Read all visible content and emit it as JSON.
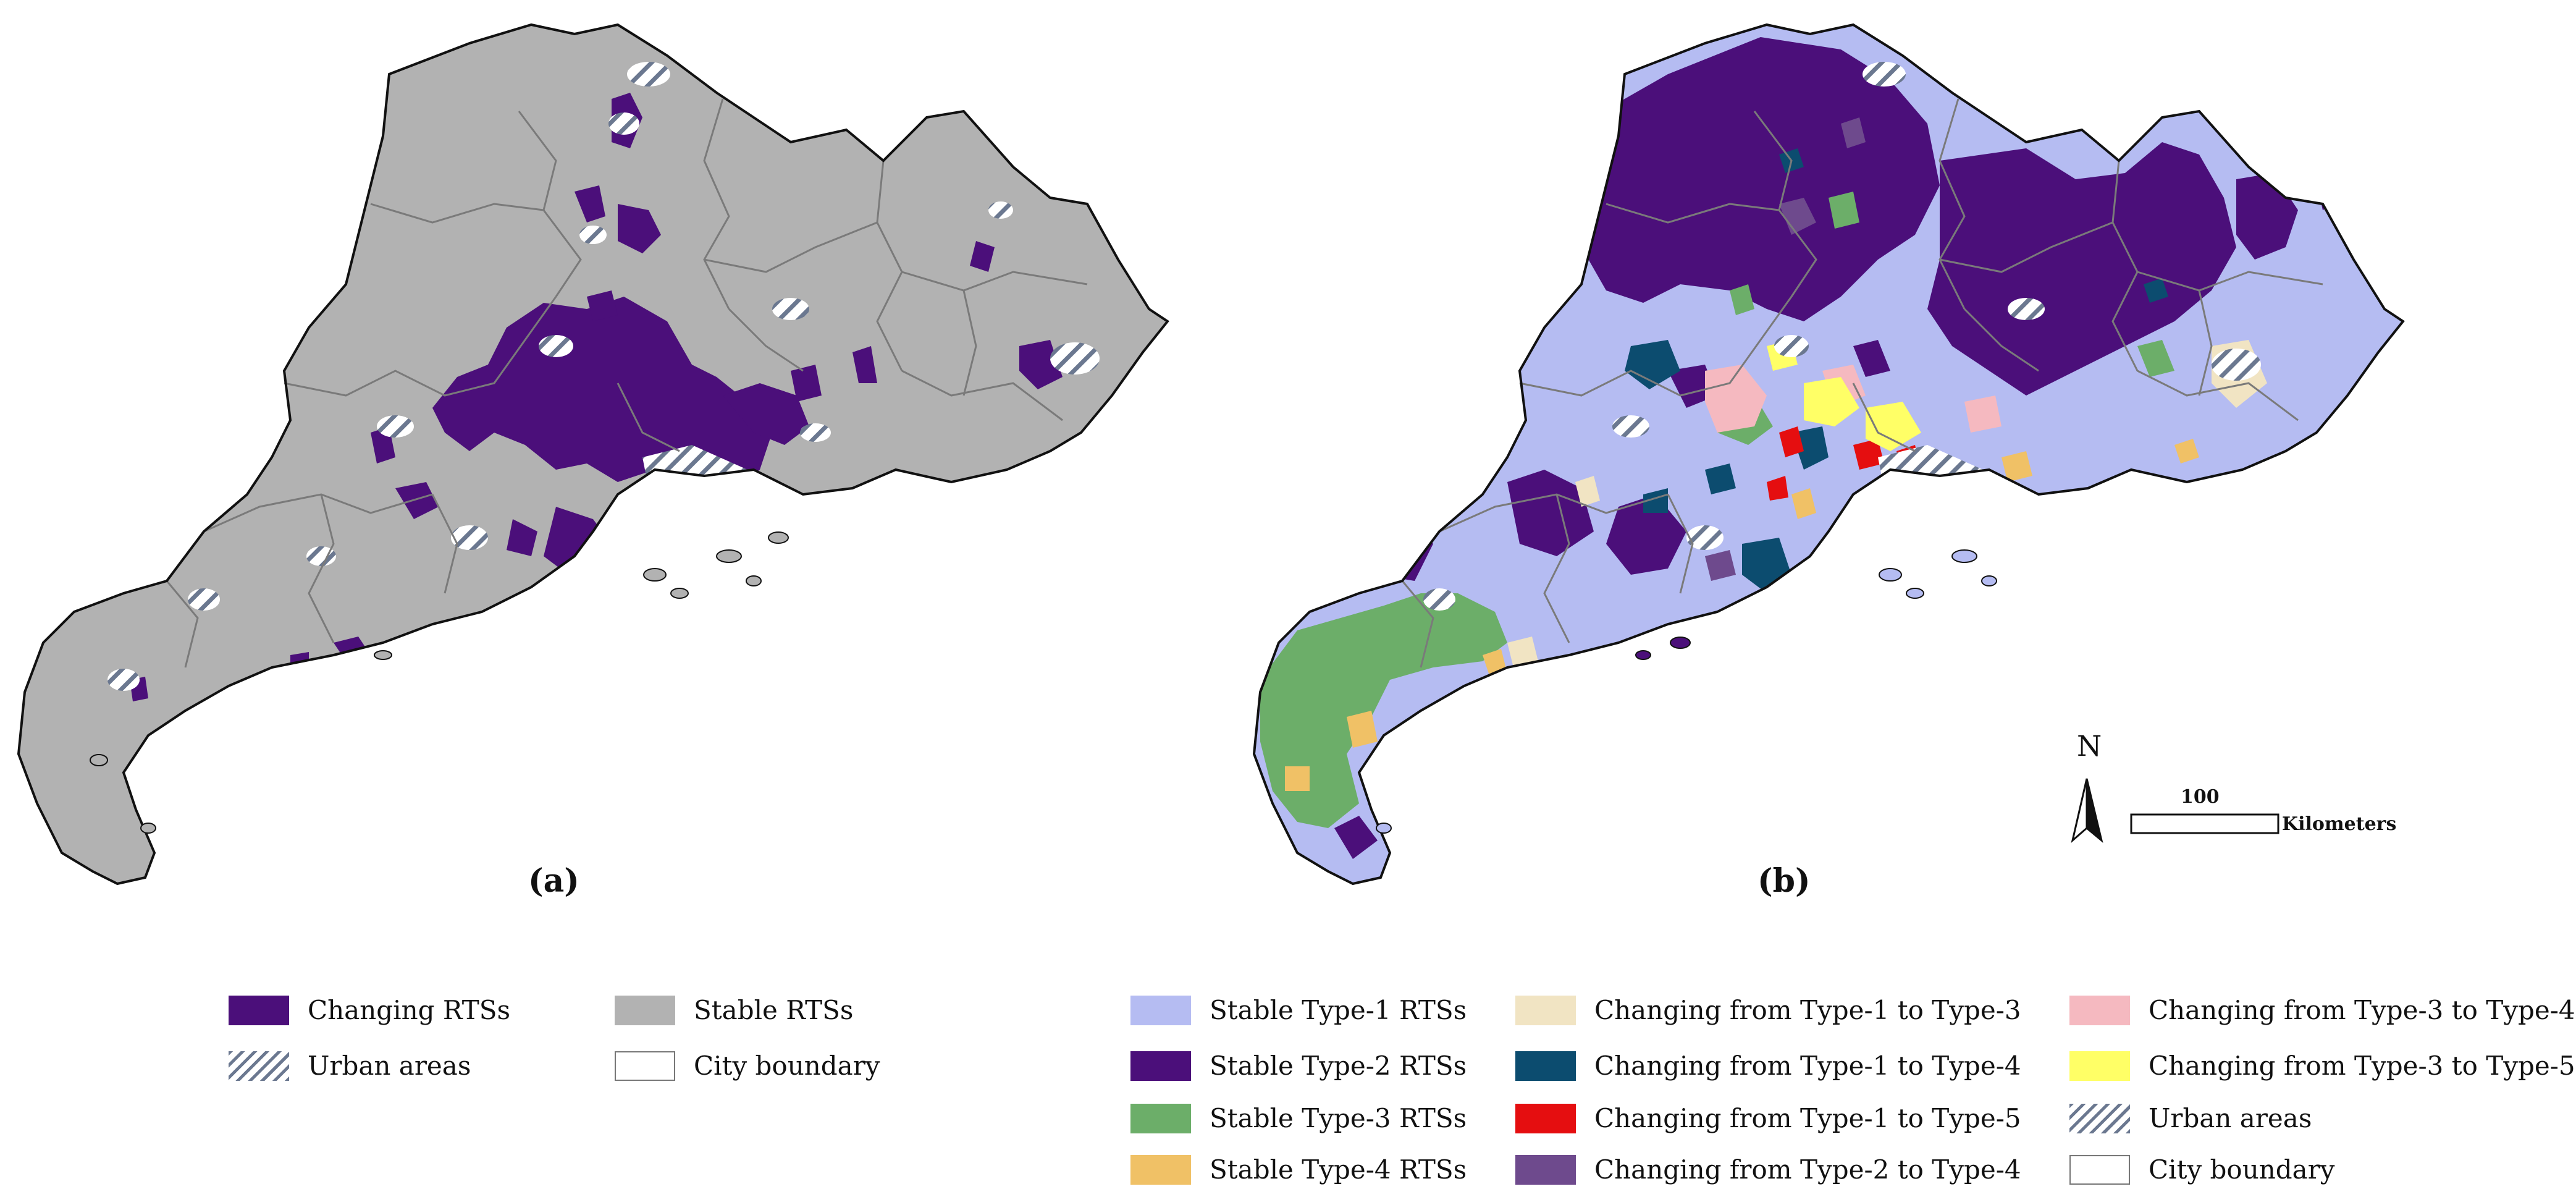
{
  "colors": {
    "changing": "#4b0f7a",
    "stable_gray": "#b2b2b2",
    "type1": "#b5bcf2",
    "type2": "#4b0f7a",
    "type3": "#6cae69",
    "type4": "#f0c166",
    "ch_1_3": "#f1e4c3",
    "ch_1_4": "#0c4c6f",
    "ch_1_5": "#e50e10",
    "ch_2_4": "#6e4a8d",
    "ch_3_4": "#f5b9c0",
    "ch_3_5": "#ffff66",
    "urban_hatch": "#6b7890",
    "boundary": "#7a7a7a"
  },
  "panels": {
    "a": {
      "label": "(a)"
    },
    "b": {
      "label": "(b)"
    }
  },
  "north_arrow": {
    "label": "N"
  },
  "scale_bar": {
    "value": "100",
    "unit": "Kilometers"
  },
  "legend_a": {
    "items": [
      {
        "label": "Changing RTSs",
        "icon": "swatch-changing"
      },
      {
        "label": "Stable RTSs",
        "icon": "swatch-stable"
      },
      {
        "label": "Urban areas",
        "icon": "swatch-urban-hatch"
      },
      {
        "label": "City boundary",
        "icon": "swatch-boundary"
      }
    ]
  },
  "legend_b": {
    "items": [
      {
        "label": "Stable Type-1 RTSs"
      },
      {
        "label": "Stable Type-2 RTSs"
      },
      {
        "label": "Stable Type-3 RTSs"
      },
      {
        "label": "Stable Type-4 RTSs"
      },
      {
        "label": "Changing from Type-1 to Type-3"
      },
      {
        "label": "Changing from Type-1 to Type-4"
      },
      {
        "label": "Changing from Type-1 to Type-5"
      },
      {
        "label": "Changing from Type-2 to Type-4"
      },
      {
        "label": "Changing from Type-3 to Type-4"
      },
      {
        "label": "Changing from Type-3 to Type-5"
      },
      {
        "label": "Urban areas"
      },
      {
        "label": "City boundary"
      }
    ]
  }
}
